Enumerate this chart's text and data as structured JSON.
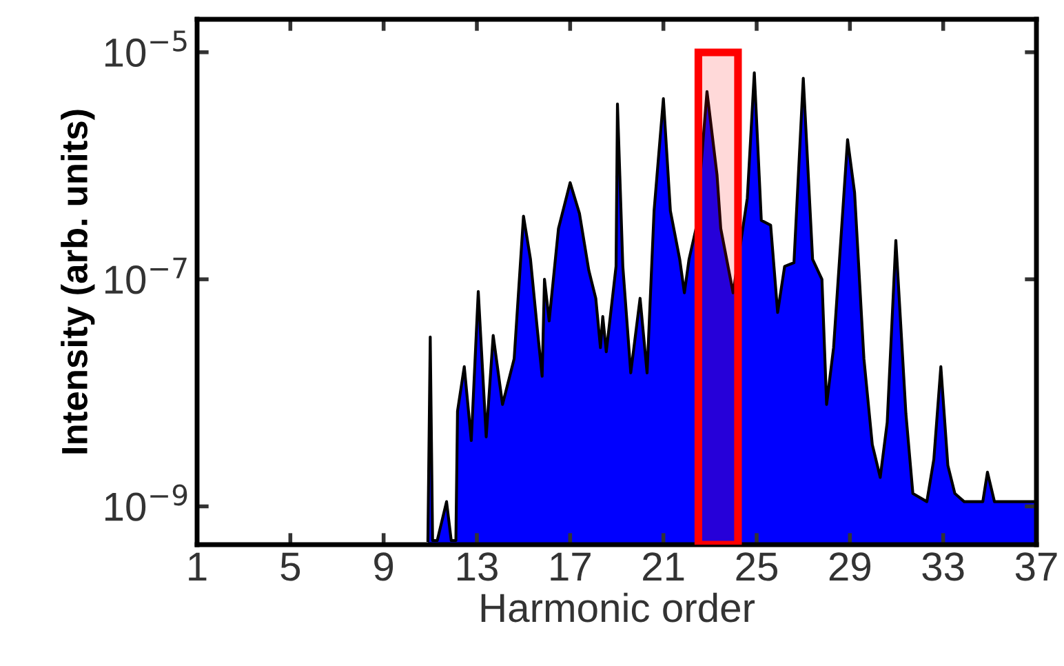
{
  "chart_data": {
    "type": "area",
    "xlabel": "Harmonic order",
    "ylabel": "Intensity (arb. units)",
    "log": true,
    "xlim": [
      1,
      37
    ],
    "xticks": [
      1,
      5,
      9,
      13,
      17,
      21,
      25,
      29,
      33,
      37
    ],
    "ylim": [
      4.6e-10,
      1.95e-05
    ],
    "yticks": [
      {
        "value": 1e-09,
        "label": "10$^{−9}$"
      },
      {
        "value": 1e-07,
        "label": "10$^{−7}$"
      },
      {
        "value": 1e-05,
        "label": "10$^{−5}$"
      }
    ],
    "grid": false,
    "bands": [
      {
        "axis": "x",
        "from": 22.5,
        "to": 24.2,
        "color": "#ff0000"
      }
    ],
    "series": [
      {
        "color": "#0000ff",
        "x": [
          10.9,
          11.0,
          11.1,
          11.3,
          11.7,
          11.9,
          12.1,
          12.17,
          12.46,
          12.76,
          13.06,
          13.4,
          13.7,
          14.1,
          14.6,
          15.0,
          15.3,
          15.6,
          15.8,
          15.9,
          16.1,
          16.5,
          17.0,
          17.4,
          17.8,
          18.1,
          18.3,
          18.4,
          18.55,
          18.97,
          19.03,
          19.26,
          19.6,
          20.0,
          20.3,
          20.6,
          21.0,
          21.3,
          21.7,
          21.9,
          22.1,
          22.4,
          22.87,
          23.3,
          23.46,
          23.99,
          24.3,
          24.6,
          24.9,
          25.2,
          25.6,
          25.9,
          26.2,
          26.6,
          27.0,
          27.4,
          27.8,
          28.0,
          28.3,
          28.9,
          29.2,
          29.6,
          29.96,
          30.3,
          30.6,
          30.97,
          31.4,
          31.7,
          32.3,
          32.6,
          32.9,
          33.2,
          33.5,
          33.9,
          34.7,
          34.9,
          35.2,
          37.0
        ],
        "values": [
          5e-10,
          3.1e-08,
          5e-10,
          5e-10,
          1.1e-09,
          5e-10,
          5e-10,
          6.9e-09,
          1.7e-08,
          3.8e-09,
          7.8e-08,
          4.1e-09,
          3.2e-08,
          7.9e-09,
          2e-08,
          3.6e-07,
          1.5e-07,
          3.5e-08,
          1.4e-08,
          1e-07,
          4.3e-08,
          2.8e-07,
          7.1e-07,
          3.8e-07,
          1.2e-07,
          6.8e-08,
          2.5e-08,
          4.7e-08,
          2.3e-08,
          1.3e-07,
          3.5e-06,
          1.3e-07,
          1.5e-08,
          6.8e-08,
          1.5e-08,
          4e-07,
          3.9e-06,
          4e-07,
          1.5e-07,
          7.6e-08,
          1.5e-07,
          2.8e-07,
          4.5e-06,
          8.3e-07,
          2.8e-07,
          7.6e-08,
          2e-07,
          5.2e-07,
          6.6e-06,
          3.3e-07,
          3e-07,
          5.1e-08,
          1.3e-07,
          1.4e-07,
          5.9e-06,
          1.5e-07,
          1e-07,
          7.9e-09,
          2.5e-08,
          1.7e-06,
          5.8e-07,
          2e-08,
          3.5e-09,
          1.8e-09,
          5.5e-09,
          2.2e-07,
          6.6e-09,
          1.3e-09,
          1.1e-09,
          2.6e-09,
          1.7e-08,
          2.3e-09,
          1.3e-09,
          1.1e-09,
          1.1e-09,
          2e-09,
          1.1e-09,
          1.1e-09
        ]
      }
    ]
  }
}
